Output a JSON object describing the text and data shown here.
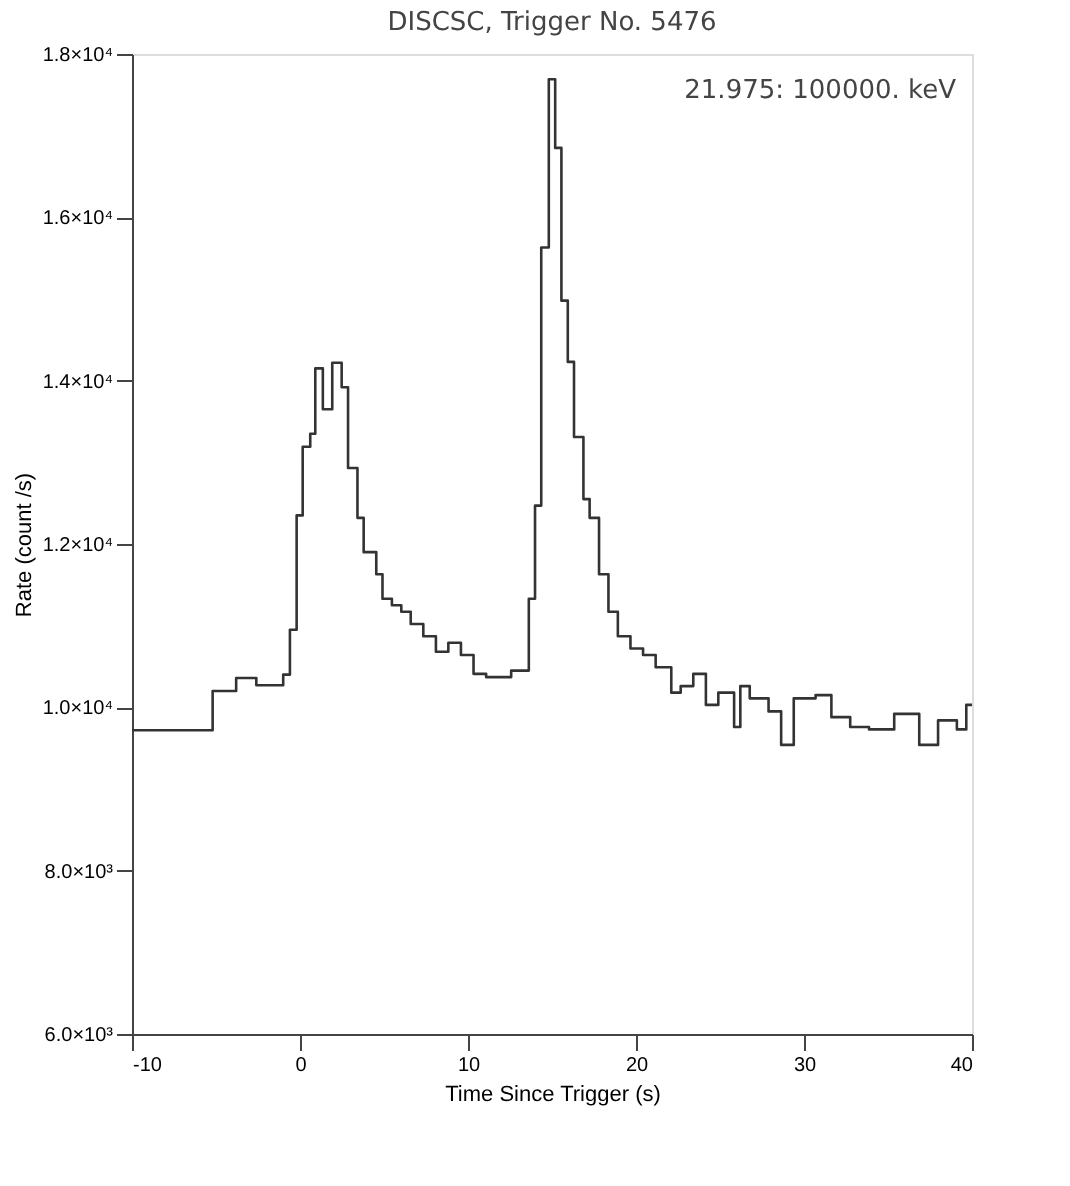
{
  "chart_data": {
    "type": "step",
    "title": "DISCSC, Trigger No. 5476",
    "xlabel": "Time Since Trigger (s)",
    "ylabel": "Rate (count /s)",
    "annotations": [
      "21.975: 100000. keV"
    ],
    "x": [
      -10,
      -5.2,
      -3.8,
      -2.6,
      -1.0,
      -0.6,
      -0.2,
      0.16,
      0.61,
      0.91,
      1.36,
      1.92,
      2.48,
      2.86,
      3.42,
      3.79,
      4.54,
      4.91,
      5.47,
      6.03,
      6.59,
      7.34,
      8.09,
      8.83,
      9.58,
      10.33,
      11.08,
      11.82,
      12.57,
      13.62,
      13.99,
      14.36,
      14.81,
      15.19,
      15.56,
      15.94,
      16.31,
      16.87,
      17.24,
      17.8,
      18.36,
      18.92,
      19.67,
      20.42,
      21.17,
      22.1,
      22.66,
      23.41,
      24.16,
      24.9,
      25.84,
      26.21,
      26.77,
      27.89,
      28.64,
      29.39,
      30.69,
      31.63,
      32.75,
      33.87,
      35.37,
      36.86,
      37.98,
      39.1,
      39.66,
      40
    ],
    "series": [
      {
        "color": "#333333",
        "values": [
          9720,
          10200,
          10360,
          10270,
          10400,
          10950,
          12350,
          13190,
          13350,
          14150,
          13650,
          14220,
          13920,
          12930,
          12320,
          11900,
          11630,
          11330,
          11250,
          11170,
          11020,
          10870,
          10680,
          10790,
          10640,
          10410,
          10370,
          10370,
          10450,
          11330,
          12470,
          15630,
          17690,
          16850,
          14980,
          14230,
          13310,
          12550,
          12320,
          11630,
          11170,
          10870,
          10720,
          10640,
          10490,
          10180,
          10260,
          10410,
          10030,
          10180,
          9760,
          10260,
          10110,
          9950,
          9540,
          10110,
          10150,
          9880,
          9760,
          9730,
          9920,
          9540,
          9840,
          9730,
          10030,
          10030
        ]
      }
    ],
    "xlim": [
      -10,
      40
    ],
    "xticks": [
      -10,
      0,
      10,
      20,
      30,
      40
    ],
    "ylim": [
      6000,
      18000
    ],
    "yticks": [
      {
        "value": 6000,
        "label": "6.0×10³"
      },
      {
        "value": 8000,
        "label": "8.0×10³"
      },
      {
        "value": 10000,
        "label": "1.0×10⁴"
      },
      {
        "value": 12000,
        "label": "1.2×10⁴"
      },
      {
        "value": 14000,
        "label": "1.4×10⁴"
      },
      {
        "value": 16000,
        "label": "1.6×10⁴"
      },
      {
        "value": 18000,
        "label": "1.8×10⁴"
      }
    ],
    "grid": false,
    "line_style": "solid",
    "marker": "none"
  }
}
